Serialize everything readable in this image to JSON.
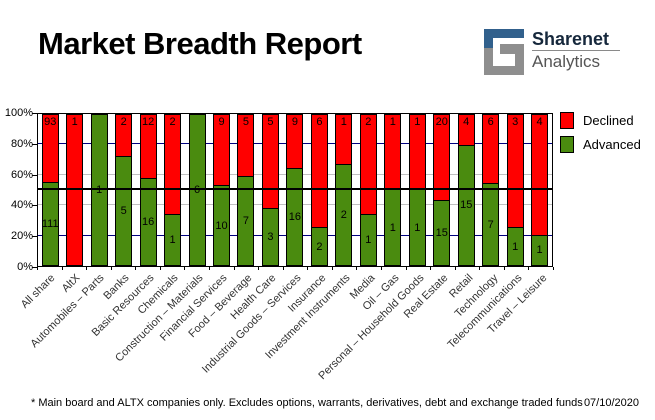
{
  "header": {
    "title": "Market Breadth Report",
    "brand": {
      "name": "Sharenet",
      "sub": "Analytics"
    }
  },
  "colors": {
    "declined": "#ff0000",
    "advanced": "#4a8b0f",
    "grid_navy": "#000080",
    "grid_gray": "#c0c0c0",
    "reference_line": "#000000",
    "logo_blue": "#31608c",
    "logo_gray": "#8e8e8e"
  },
  "chart_data": {
    "type": "bar",
    "stacked": true,
    "percent_stacked": true,
    "title": "Market Breadth Report",
    "categories": [
      "All share",
      "AltX",
      "Automobiles – Parts",
      "Banks",
      "Basic Resources",
      "Chemicals",
      "Construction – Materials",
      "Financial Services",
      "Food – Beverage",
      "Health Care",
      "Industrial Goods – Services",
      "Insurance",
      "Investment Instruments",
      "Media",
      "Oil – Gas",
      "Personal – Household Goods",
      "Real Estate",
      "Retail",
      "Technology",
      "Telecommunications",
      "Travel – Leisure"
    ],
    "series": [
      {
        "name": "Declined",
        "color": "#ff0000",
        "values": [
          93,
          1,
          0,
          2,
          12,
          2,
          0,
          9,
          5,
          5,
          9,
          6,
          1,
          2,
          1,
          1,
          20,
          4,
          6,
          3,
          4
        ]
      },
      {
        "name": "Advanced",
        "color": "#4a8b0f",
        "values": [
          111,
          0,
          1,
          5,
          16,
          1,
          6,
          10,
          7,
          3,
          16,
          2,
          2,
          1,
          1,
          1,
          15,
          15,
          7,
          1,
          1
        ]
      }
    ],
    "y_ticks": [
      "0%",
      "20%",
      "40%",
      "60%",
      "80%",
      "100%"
    ],
    "ylim": [
      0,
      100
    ],
    "grid": {
      "navy_lines_pct": [
        20,
        80
      ],
      "gray_lines_pct": [
        40,
        60
      ],
      "reference_line_pct": 50
    },
    "legend_position": "right",
    "legend": [
      "Declined",
      "Advanced"
    ]
  },
  "footer": {
    "note": "* Main board and ALTX companies only. Excludes options, warrants, derivatives, debt and exchange traded funds",
    "date": "07/10/2020"
  }
}
